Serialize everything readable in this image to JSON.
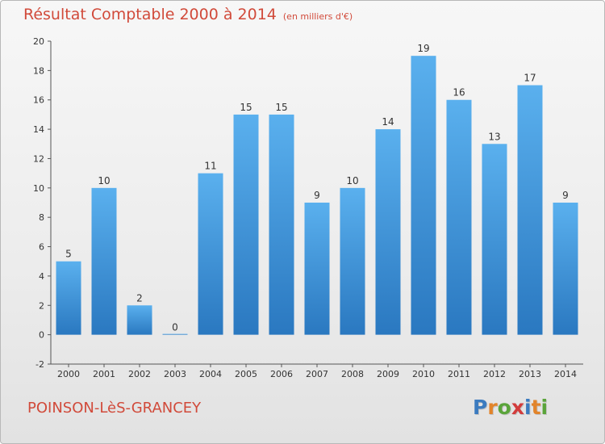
{
  "title": "Résultat Comptable 2000 à 2014",
  "subtitle": "(en milliers d'€)",
  "place": "POINSON-LèS-GRANCEY",
  "brand": {
    "text": "Proxiti",
    "letters": [
      {
        "char": "P",
        "color": "#3b7bbf"
      },
      {
        "char": "r",
        "color": "#e2842a"
      },
      {
        "char": "o",
        "color": "#5aa43a"
      },
      {
        "char": "x",
        "color": "#d23c3c"
      },
      {
        "char": "i",
        "color": "#3b7bbf"
      },
      {
        "char": "t",
        "color": "#e2842a"
      },
      {
        "char": "i",
        "color": "#5aa43a"
      }
    ]
  },
  "colors": {
    "title": "#d14a3a",
    "bar_light": "#5ab0ee",
    "bar_dark": "#2a78c0",
    "axis_text": "#333333",
    "grid": "#c8c8c8"
  },
  "chart_data": {
    "type": "bar",
    "title": "Résultat Comptable 2000 à 2014",
    "subtitle": "(en milliers d'€)",
    "categories": [
      "2000",
      "2001",
      "2002",
      "2003",
      "2004",
      "2005",
      "2006",
      "2007",
      "2008",
      "2009",
      "2010",
      "2011",
      "2012",
      "2013",
      "2014"
    ],
    "values": [
      5,
      10,
      2,
      0,
      11,
      15,
      15,
      9,
      10,
      14,
      19,
      16,
      13,
      17,
      9
    ],
    "ylim": [
      -2,
      20
    ],
    "yticks": [
      -2,
      0,
      2,
      4,
      6,
      8,
      10,
      12,
      14,
      16,
      18,
      20
    ],
    "grid": false,
    "data_labels": true
  }
}
